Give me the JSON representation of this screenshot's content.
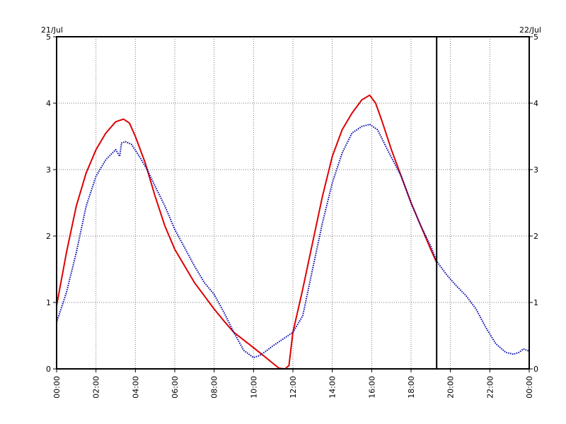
{
  "chart_data": {
    "type": "line",
    "date_labels": {
      "left": "21/Jul",
      "right": "22/Jul"
    },
    "x_ticks": [
      "00:00",
      "02:00",
      "04:00",
      "06:00",
      "08:00",
      "10:00",
      "12:00",
      "14:00",
      "16:00",
      "18:00",
      "20:00",
      "22:00",
      "00:00"
    ],
    "xlim": [
      0,
      24
    ],
    "y_ticks": [
      "0",
      "1",
      "2",
      "3",
      "4",
      "5"
    ],
    "ylim": [
      0,
      5
    ],
    "grid": "dotted",
    "marker_line_x": 19.3,
    "colors": {
      "series_1": "#dd0000",
      "series_2": "#0000aa",
      "marker": "#000000"
    },
    "series": [
      {
        "color": "#dd0000",
        "style": "solid",
        "x": [
          0,
          0.5,
          1,
          1.5,
          2,
          2.5,
          3,
          3.4,
          3.7,
          4,
          4.5,
          5,
          5.5,
          6,
          7,
          8,
          8.5,
          9,
          10,
          10.5,
          11,
          11.3,
          11.6,
          11.8,
          12,
          12.5,
          13,
          13.5,
          14,
          14.5,
          15,
          15.5,
          15.9,
          16.2,
          16.5,
          17,
          17.5,
          18,
          18.5,
          19,
          19.3
        ],
        "y": [
          0.95,
          1.75,
          2.45,
          2.95,
          3.3,
          3.55,
          3.72,
          3.76,
          3.7,
          3.5,
          3.1,
          2.6,
          2.15,
          1.8,
          1.3,
          0.9,
          0.72,
          0.55,
          0.32,
          0.2,
          0.08,
          0.01,
          0.0,
          0.05,
          0.55,
          1.2,
          1.9,
          2.6,
          3.2,
          3.6,
          3.85,
          4.05,
          4.12,
          4.0,
          3.75,
          3.3,
          2.9,
          2.5,
          2.15,
          1.8,
          1.6
        ]
      },
      {
        "color": "#0000aa",
        "style": "dotted",
        "x": [
          0,
          0.5,
          1,
          1.5,
          2,
          2.5,
          3,
          3.2,
          3.3,
          3.5,
          3.8,
          4.2,
          4.6,
          5,
          5.5,
          6,
          7,
          7.5,
          8,
          8.5,
          9,
          9.5,
          10,
          10.3,
          10.6,
          11,
          11.5,
          12,
          12.5,
          13,
          13.5,
          14,
          14.5,
          15,
          15.5,
          15.9,
          16.3,
          16.8,
          17.5,
          18,
          18.5,
          19,
          19.3,
          19.8,
          20.3,
          20.8,
          21.3,
          21.8,
          22.3,
          22.8,
          23.2,
          23.5,
          23.7,
          23.9,
          24
        ],
        "y": [
          0.7,
          1.15,
          1.75,
          2.45,
          2.9,
          3.15,
          3.3,
          3.2,
          3.4,
          3.42,
          3.38,
          3.2,
          3.0,
          2.75,
          2.45,
          2.1,
          1.55,
          1.3,
          1.12,
          0.85,
          0.55,
          0.28,
          0.17,
          0.2,
          0.26,
          0.35,
          0.45,
          0.55,
          0.8,
          1.5,
          2.2,
          2.8,
          3.25,
          3.55,
          3.65,
          3.68,
          3.6,
          3.3,
          2.9,
          2.5,
          2.15,
          1.85,
          1.62,
          1.42,
          1.25,
          1.1,
          0.9,
          0.62,
          0.38,
          0.25,
          0.22,
          0.25,
          0.3,
          0.28,
          0.26
        ]
      }
    ]
  }
}
